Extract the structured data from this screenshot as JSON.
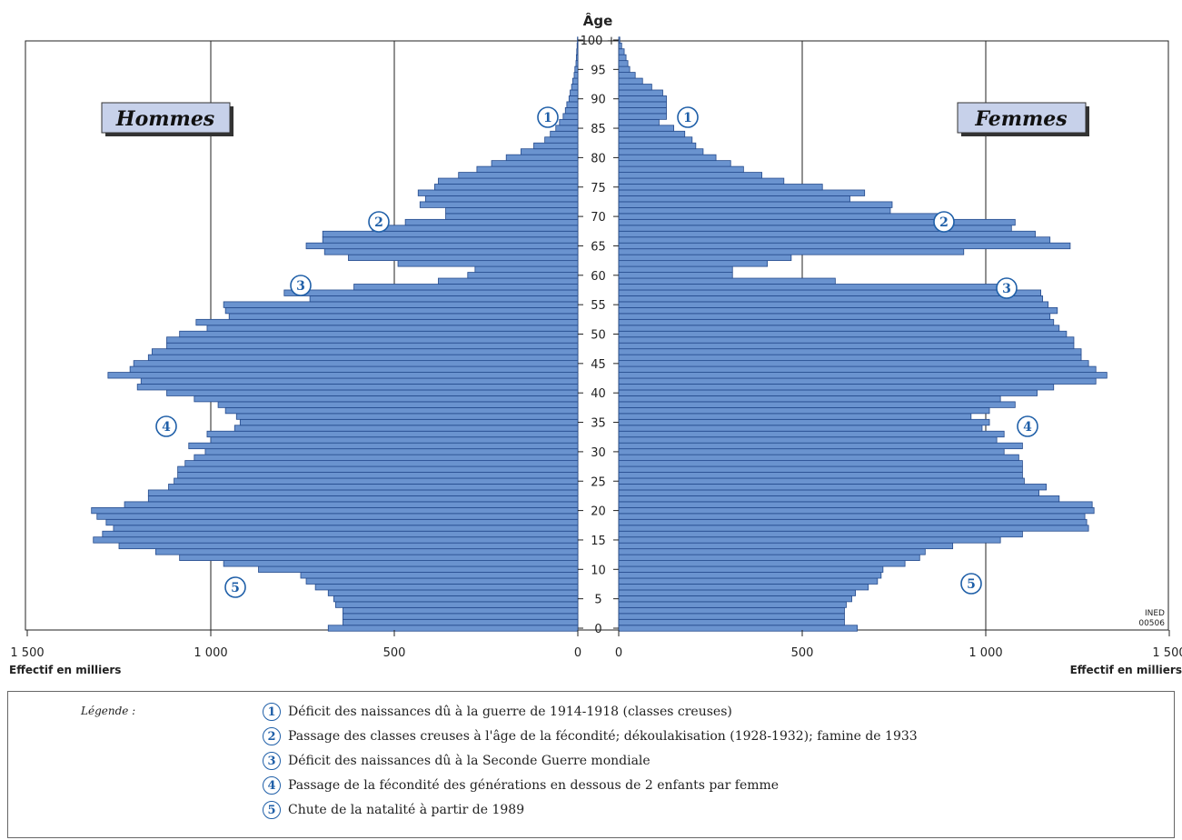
{
  "chart_data": {
    "type": "bar",
    "orientation": "horizontal population pyramid",
    "age_axis_label": "Âge",
    "age_ticks": [
      "0",
      "5",
      "10",
      "15",
      "20",
      "25",
      "30",
      "35",
      "40",
      "45",
      "50",
      "55",
      "60",
      "65",
      "70",
      "75",
      "80",
      "85",
      "90",
      "95",
      "100 +"
    ],
    "x_ticks_left": [
      "1 500",
      "1 000",
      "500",
      "0"
    ],
    "x_ticks_right": [
      "0",
      "500",
      "1 000",
      "1 500"
    ],
    "x_unit_left": "Effectif en milliers",
    "x_unit_right": "Effectif en milliers",
    "xlim": [
      0,
      1500
    ],
    "ylim": [
      0,
      100
    ],
    "source_tag": [
      "INED",
      "00506"
    ],
    "panel_labels": {
      "left": "Hommes",
      "right": "Femmes"
    },
    "ages": [
      0,
      1,
      2,
      3,
      4,
      5,
      6,
      7,
      8,
      9,
      10,
      11,
      12,
      13,
      14,
      15,
      16,
      17,
      18,
      19,
      20,
      21,
      22,
      23,
      24,
      25,
      26,
      27,
      28,
      29,
      30,
      31,
      32,
      33,
      34,
      35,
      36,
      37,
      38,
      39,
      40,
      41,
      42,
      43,
      44,
      45,
      46,
      47,
      48,
      49,
      50,
      51,
      52,
      53,
      54,
      55,
      56,
      57,
      58,
      59,
      60,
      61,
      62,
      63,
      64,
      65,
      66,
      67,
      68,
      69,
      70,
      71,
      72,
      73,
      74,
      75,
      76,
      77,
      78,
      79,
      80,
      81,
      82,
      83,
      84,
      85,
      86,
      87,
      88,
      89,
      90,
      91,
      92,
      93,
      94,
      95,
      96,
      97,
      98,
      99,
      100
    ],
    "series": [
      {
        "name": "Hommes",
        "values": [
          680,
          640,
          640,
          640,
          660,
          665,
          680,
          715,
          740,
          755,
          870,
          965,
          1085,
          1150,
          1250,
          1320,
          1295,
          1265,
          1285,
          1310,
          1325,
          1235,
          1170,
          1170,
          1115,
          1100,
          1090,
          1090,
          1070,
          1045,
          1015,
          1060,
          1000,
          1010,
          935,
          920,
          930,
          960,
          980,
          1045,
          1120,
          1200,
          1190,
          1280,
          1220,
          1210,
          1170,
          1160,
          1120,
          1120,
          1085,
          1010,
          1040,
          950,
          960,
          965,
          730,
          800,
          610,
          380,
          300,
          280,
          490,
          625,
          690,
          740,
          695,
          695,
          560,
          470,
          360,
          360,
          430,
          415,
          435,
          390,
          380,
          325,
          275,
          235,
          195,
          155,
          120,
          90,
          75,
          60,
          50,
          40,
          34,
          30,
          24,
          21,
          17,
          14,
          10,
          8,
          5,
          4,
          3,
          2,
          1
        ]
      },
      {
        "name": "Femmes",
        "values": [
          650,
          615,
          615,
          615,
          620,
          635,
          645,
          680,
          705,
          715,
          720,
          780,
          820,
          835,
          910,
          1040,
          1100,
          1280,
          1275,
          1270,
          1295,
          1290,
          1200,
          1145,
          1165,
          1105,
          1100,
          1100,
          1100,
          1090,
          1050,
          1100,
          1030,
          1050,
          990,
          1010,
          960,
          1010,
          1080,
          1040,
          1140,
          1185,
          1300,
          1330,
          1300,
          1280,
          1260,
          1260,
          1240,
          1240,
          1220,
          1200,
          1185,
          1175,
          1195,
          1170,
          1155,
          1150,
          1080,
          590,
          310,
          310,
          405,
          470,
          940,
          1230,
          1175,
          1135,
          1070,
          1080,
          880,
          740,
          745,
          630,
          670,
          555,
          450,
          390,
          340,
          305,
          265,
          230,
          210,
          200,
          180,
          150,
          110,
          130,
          130,
          130,
          130,
          120,
          90,
          65,
          45,
          30,
          25,
          20,
          15,
          8,
          3
        ]
      }
    ],
    "markers": [
      {
        "n": "1",
        "age": 88,
        "side": "both"
      },
      {
        "n": "2",
        "age": 70,
        "side": "both"
      },
      {
        "n": "3",
        "age": 58,
        "side": "both"
      },
      {
        "n": "4",
        "age": 34,
        "side": "both"
      },
      {
        "n": "5",
        "age": 7,
        "side": "both"
      }
    ]
  },
  "legend": {
    "title": "Légende :",
    "items": [
      {
        "n": "1",
        "text": "Déficit des naissances dû à la guerre de 1914-1918 (classes creuses)"
      },
      {
        "n": "2",
        "text": "Passage des classes creuses à l'âge de la fécondité; dékoulakisation (1928-1932); famine de 1933"
      },
      {
        "n": "3",
        "text": "Déficit des naissances dû à la Seconde Guerre mondiale"
      },
      {
        "n": "4",
        "text": "Passage de la fécondité des générations en dessous de 2 enfants par femme"
      },
      {
        "n": "5",
        "text": "Chute de la natalité à partir de 1989"
      }
    ]
  },
  "colors": {
    "bar_fill": "#6a93cf",
    "bar_stroke": "#244a8c",
    "marker": "#1f5fa8",
    "label_box": "#c7d1ea"
  }
}
